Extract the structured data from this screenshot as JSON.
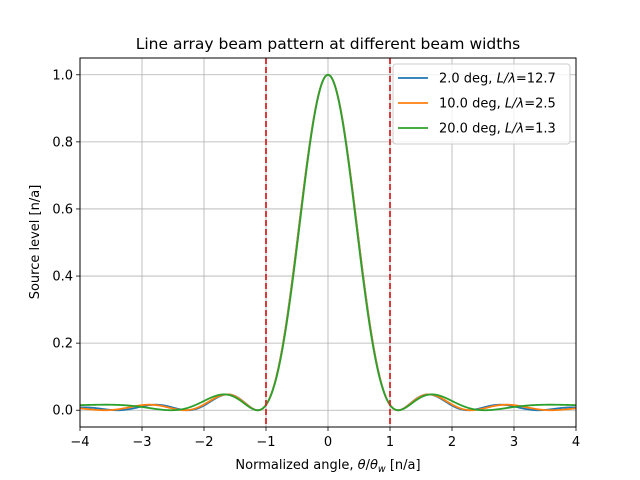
{
  "chart_data": {
    "type": "line",
    "title": "Line array beam pattern at different beam widths",
    "xlabel": "Normalized angle, θ/θ_w [n/a]",
    "ylabel": "Source level [n/a]",
    "xlim": [
      -4,
      4
    ],
    "ylim": [
      -0.05,
      1.05
    ],
    "xticks": [
      -4,
      -3,
      -2,
      -1,
      0,
      1,
      2,
      3,
      4
    ],
    "xtick_labels": [
      "−4",
      "−3",
      "−2",
      "−1",
      "0",
      "1",
      "2",
      "3",
      "4"
    ],
    "yticks": [
      0.0,
      0.2,
      0.4,
      0.6,
      0.8,
      1.0
    ],
    "ytick_labels": [
      "0.0",
      "0.2",
      "0.4",
      "0.6",
      "0.8",
      "1.0"
    ],
    "grid": true,
    "legend_position": "top-right",
    "series": [
      {
        "name": "2.0 deg, L/λ=12.7",
        "legend_plain": "2.0 deg, ",
        "legend_var": "L/λ",
        "legend_suffix": "=12.7",
        "color": "#1f77b4",
        "beam_width_deg": 2.0,
        "L_over_lambda": 12.7
      },
      {
        "name": "10.0 deg, L/λ=2.5",
        "legend_plain": "10.0 deg, ",
        "legend_var": "L/λ",
        "legend_suffix": "=2.5",
        "color": "#ff7f0e",
        "beam_width_deg": 10.0,
        "L_over_lambda": 2.5
      },
      {
        "name": "20.0 deg, L/λ=1.3",
        "legend_plain": "20.0 deg, ",
        "legend_var": "L/λ",
        "legend_suffix": "=1.3",
        "color": "#2ca02c",
        "beam_width_deg": 20.0,
        "L_over_lambda": 1.3
      }
    ],
    "vlines": [
      {
        "x": -1,
        "color": "#d62728",
        "style": "dashed"
      },
      {
        "x": 1,
        "color": "#d62728",
        "style": "dashed"
      }
    ]
  }
}
